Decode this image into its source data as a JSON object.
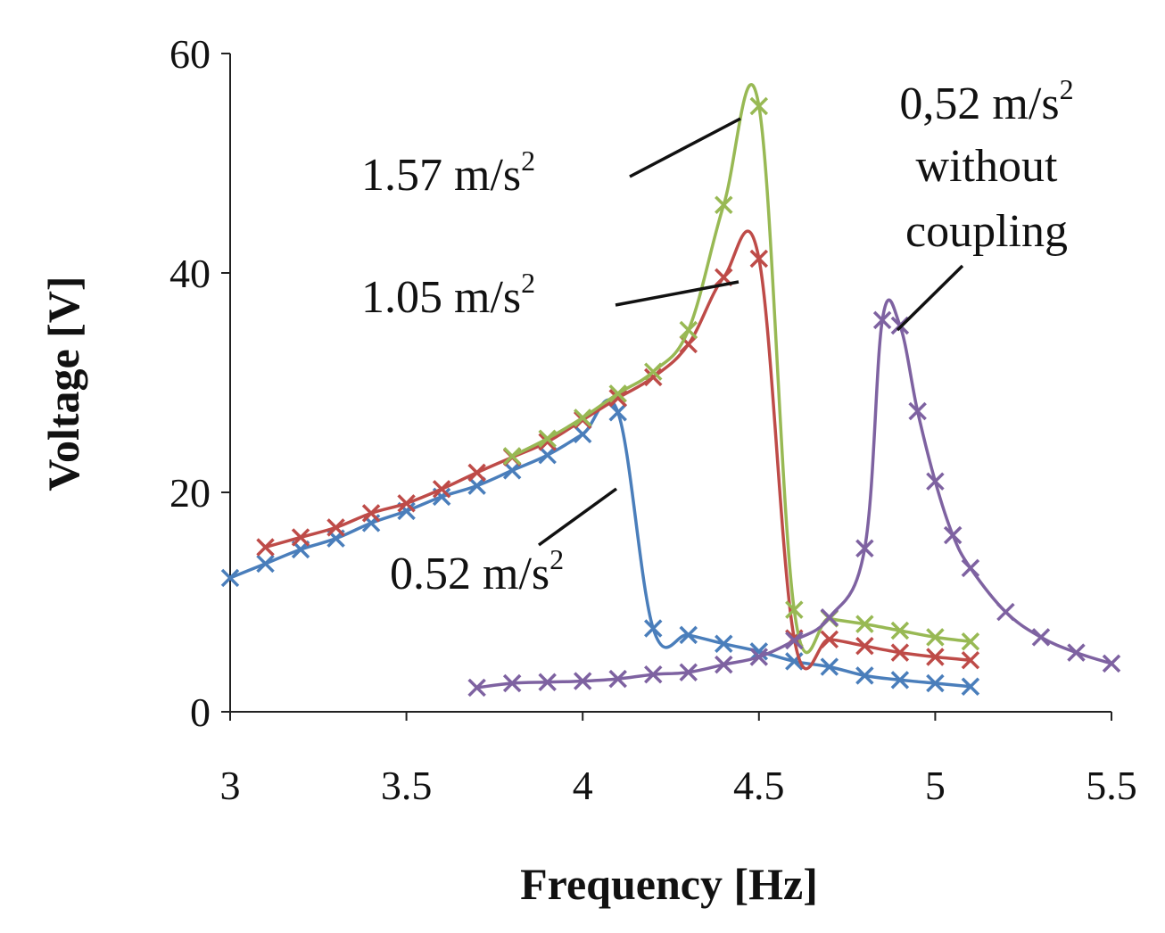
{
  "chart_data": {
    "type": "line",
    "xlabel": "Frequency [Hz]",
    "ylabel": "Voltage [V]",
    "xlim": [
      3,
      5.5
    ],
    "ylim": [
      0,
      60
    ],
    "xticks": [
      "3",
      "3.5",
      "4",
      "4.5",
      "5",
      "5.5"
    ],
    "yticks": [
      "0",
      "20",
      "40",
      "60"
    ],
    "series": [
      {
        "name": "0.52 m/s2",
        "color": "#4a7ebb",
        "x": [
          3.0,
          3.1,
          3.2,
          3.3,
          3.4,
          3.5,
          3.6,
          3.7,
          3.8,
          3.9,
          4.0,
          4.1,
          4.2,
          4.3,
          4.4,
          4.5,
          4.6,
          4.7,
          4.8,
          4.9,
          5.0,
          5.1
        ],
        "values": [
          12.2,
          13.5,
          14.8,
          15.8,
          17.2,
          18.3,
          19.6,
          20.6,
          22.0,
          23.4,
          25.3,
          27.3,
          7.6,
          7.0,
          6.2,
          5.5,
          4.6,
          4.1,
          3.3,
          2.9,
          2.6,
          2.3
        ]
      },
      {
        "name": "1.05 m/s2",
        "color": "#be4b48",
        "x": [
          3.1,
          3.2,
          3.3,
          3.4,
          3.5,
          3.6,
          3.7,
          3.8,
          3.9,
          4.0,
          4.1,
          4.2,
          4.3,
          4.4,
          4.5,
          4.6,
          4.7,
          4.8,
          4.9,
          5.0,
          5.1
        ],
        "values": [
          15.0,
          15.9,
          16.8,
          18.1,
          19.0,
          20.3,
          21.8,
          23.2,
          24.6,
          26.6,
          28.6,
          30.5,
          33.5,
          39.6,
          41.3,
          6.7,
          6.6,
          6.0,
          5.4,
          5.0,
          4.7
        ]
      },
      {
        "name": "1.57 m/s2",
        "color": "#98b954",
        "x": [
          3.8,
          3.9,
          4.0,
          4.1,
          4.2,
          4.3,
          4.4,
          4.5,
          4.6,
          4.7,
          4.8,
          4.9,
          5.0,
          5.1
        ],
        "values": [
          23.3,
          24.9,
          26.8,
          29.0,
          31.0,
          34.8,
          46.2,
          55.2,
          9.3,
          8.5,
          8.0,
          7.4,
          6.8,
          6.4
        ]
      },
      {
        "name": "0,52 m/s2 without coupling",
        "color": "#7e62a1",
        "x": [
          3.7,
          3.8,
          3.9,
          4.0,
          4.1,
          4.2,
          4.3,
          4.4,
          4.5,
          4.6,
          4.7,
          4.8,
          4.85,
          4.9,
          4.95,
          5.0,
          5.05,
          5.1,
          5.2,
          5.3,
          5.4,
          5.5
        ],
        "values": [
          2.2,
          2.6,
          2.7,
          2.8,
          3.0,
          3.4,
          3.6,
          4.3,
          5.0,
          6.5,
          8.6,
          14.9,
          35.7,
          35.2,
          27.4,
          21.0,
          16.1,
          13.1,
          9.1,
          6.8,
          5.4,
          4.4
        ]
      }
    ],
    "annotations": [
      {
        "text": "1.57 m/s",
        "sup": "2"
      },
      {
        "text": "1.05 m/s",
        "sup": "2"
      },
      {
        "text": "0.52 m/s",
        "sup": "2"
      },
      {
        "text": "0,52 m/s",
        "sup": "2",
        "line2": "without",
        "line3": "coupling"
      }
    ]
  }
}
